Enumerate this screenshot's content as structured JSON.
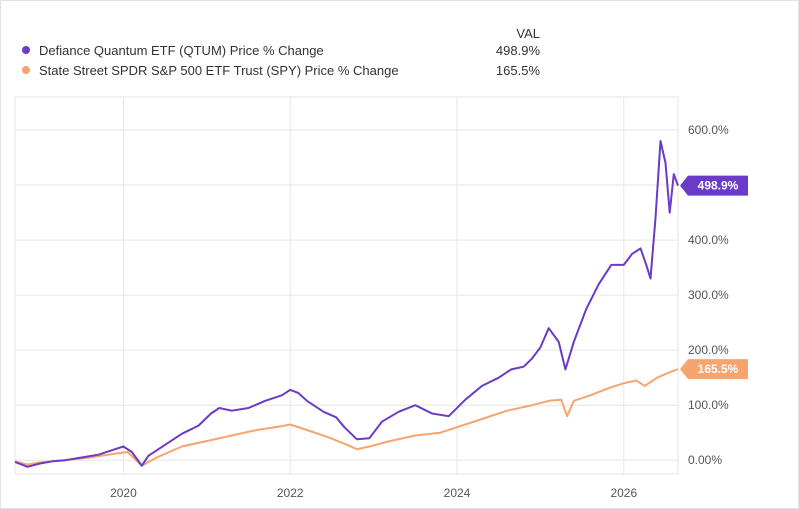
{
  "legend": {
    "header": "VAL",
    "entries": [
      {
        "label": "Defiance Quantum ETF (QTUM) Price % Change",
        "value": "498.9%",
        "color": "#6a3bc7"
      },
      {
        "label": "State Street SPDR S&P 500 ETF Trust (SPY) Price % Change",
        "value": "165.5%",
        "color": "#f7a46f"
      }
    ]
  },
  "chart_data": {
    "type": "line",
    "xlim": [
      2018.7,
      2026.65
    ],
    "ylim": [
      -25,
      660
    ],
    "x_ticks": [
      {
        "value": 2020,
        "label": "2020"
      },
      {
        "value": 2022,
        "label": "2022"
      },
      {
        "value": 2024,
        "label": "2024"
      },
      {
        "value": 2026,
        "label": "2026"
      }
    ],
    "y_ticks": [
      {
        "value": 0,
        "label": "0.00%"
      },
      {
        "value": 100,
        "label": "100.0%"
      },
      {
        "value": 200,
        "label": "200.0%"
      },
      {
        "value": 300,
        "label": "300.0%"
      },
      {
        "value": 400,
        "label": "400.0%"
      },
      {
        "value": 500,
        "label": "500.0%"
      },
      {
        "value": 600,
        "label": "600.0%"
      }
    ],
    "grid": true,
    "legend_position": "top-left",
    "series": [
      {
        "name": "Defiance Quantum ETF (QTUM) Price % Change",
        "color": "#6a3bc7",
        "end_label": "498.9%",
        "x": [
          2018.7,
          2018.85,
          2019.0,
          2019.15,
          2019.3,
          2019.5,
          2019.7,
          2019.9,
          2020.0,
          2020.1,
          2020.22,
          2020.3,
          2020.5,
          2020.7,
          2020.9,
          2021.05,
          2021.15,
          2021.3,
          2021.5,
          2021.7,
          2021.9,
          2022.0,
          2022.1,
          2022.2,
          2022.4,
          2022.55,
          2022.65,
          2022.8,
          2022.95,
          2023.1,
          2023.3,
          2023.5,
          2023.7,
          2023.9,
          2024.1,
          2024.3,
          2024.5,
          2024.65,
          2024.8,
          2024.9,
          2025.0,
          2025.1,
          2025.22,
          2025.3,
          2025.4,
          2025.55,
          2025.7,
          2025.85,
          2026.0,
          2026.1,
          2026.2,
          2026.27,
          2026.32,
          2026.38,
          2026.44,
          2026.5,
          2026.55,
          2026.6,
          2026.65
        ],
        "values": [
          -3,
          -12,
          -6,
          -2,
          0,
          5,
          10,
          20,
          25,
          15,
          -10,
          8,
          28,
          48,
          63,
          85,
          95,
          90,
          95,
          108,
          118,
          128,
          122,
          108,
          88,
          78,
          60,
          38,
          40,
          70,
          88,
          100,
          85,
          80,
          110,
          135,
          150,
          165,
          170,
          185,
          205,
          240,
          215,
          165,
          215,
          275,
          320,
          355,
          355,
          375,
          385,
          355,
          330,
          440,
          580,
          540,
          450,
          520,
          498.9
        ]
      },
      {
        "name": "State Street SPDR S&P 500 ETF Trust (SPY) Price % Change",
        "color": "#f7a46f",
        "end_label": "165.5%",
        "x": [
          2018.7,
          2018.85,
          2019.0,
          2019.3,
          2019.6,
          2019.9,
          2020.05,
          2020.22,
          2020.4,
          2020.7,
          2021.0,
          2021.3,
          2021.6,
          2021.9,
          2022.0,
          2022.2,
          2022.45,
          2022.65,
          2022.8,
          2022.95,
          2023.2,
          2023.5,
          2023.8,
          2024.0,
          2024.3,
          2024.6,
          2024.9,
          2025.1,
          2025.25,
          2025.32,
          2025.4,
          2025.6,
          2025.8,
          2026.0,
          2026.15,
          2026.25,
          2026.4,
          2026.55,
          2026.65
        ],
        "values": [
          -2,
          -8,
          -4,
          0,
          5,
          12,
          15,
          -10,
          5,
          25,
          35,
          45,
          55,
          62,
          65,
          55,
          42,
          30,
          20,
          25,
          35,
          45,
          50,
          60,
          75,
          90,
          100,
          108,
          110,
          80,
          108,
          118,
          130,
          140,
          145,
          135,
          150,
          160,
          165.5
        ]
      }
    ]
  }
}
